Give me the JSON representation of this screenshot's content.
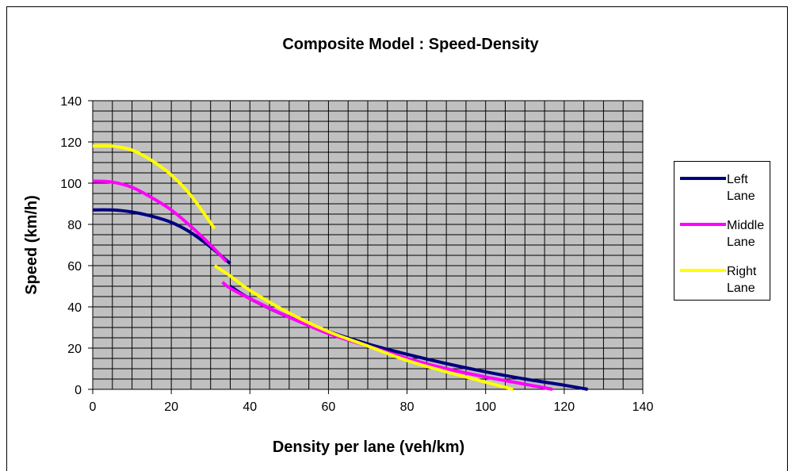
{
  "chart_data": {
    "type": "line",
    "title": "Composite Model : Speed-Density",
    "xlabel": "Density per lane (veh/km)",
    "ylabel": "Speed (km/h)",
    "xlim": [
      0,
      140
    ],
    "ylim": [
      0,
      140
    ],
    "x_ticks": [
      "0",
      "20",
      "40",
      "60",
      "80",
      "100",
      "120",
      "140"
    ],
    "y_ticks": [
      "0",
      "20",
      "40",
      "60",
      "80",
      "100",
      "120",
      "140"
    ],
    "x_minor_step": 5,
    "y_minor_step": 5,
    "grid": true,
    "plot_background": "#c0c0c0",
    "gridline_color": "#000000",
    "legend_position": "right",
    "series": [
      {
        "name": "Left Lane",
        "color": "#000080",
        "segments": [
          [
            [
              0,
              87
            ],
            [
              5,
              87
            ],
            [
              10,
              86
            ],
            [
              15,
              84
            ],
            [
              20,
              81
            ],
            [
              25,
              76
            ],
            [
              30,
              69
            ],
            [
              35,
              61
            ]
          ],
          [
            [
              35,
              50
            ],
            [
              40,
              44
            ],
            [
              50,
              35
            ],
            [
              60,
              28
            ],
            [
              70,
              22
            ],
            [
              80,
              17
            ],
            [
              90,
              12.5
            ],
            [
              100,
              8.5
            ],
            [
              110,
              5
            ],
            [
              120,
              2
            ],
            [
              126,
              0
            ]
          ]
        ]
      },
      {
        "name": "Middle Lane",
        "color": "#ff00ff",
        "segments": [
          [
            [
              0,
              101
            ],
            [
              5,
              100.5
            ],
            [
              10,
              98
            ],
            [
              15,
              93
            ],
            [
              20,
              87
            ],
            [
              25,
              79
            ],
            [
              30,
              70
            ],
            [
              34,
              62
            ]
          ],
          [
            [
              33,
              52
            ],
            [
              35,
              49
            ],
            [
              40,
              44
            ],
            [
              50,
              35
            ],
            [
              60,
              27
            ],
            [
              70,
              21
            ],
            [
              80,
              15
            ],
            [
              90,
              10
            ],
            [
              100,
              6
            ],
            [
              110,
              2.5
            ],
            [
              117,
              0
            ]
          ]
        ]
      },
      {
        "name": "Right Lane",
        "color": "#ffff00",
        "segments": [
          [
            [
              0,
              118
            ],
            [
              5,
              118
            ],
            [
              10,
              116
            ],
            [
              15,
              111
            ],
            [
              20,
              104
            ],
            [
              25,
              94
            ],
            [
              31,
              78
            ]
          ],
          [
            [
              31,
              60
            ],
            [
              35,
              55
            ],
            [
              40,
              48
            ],
            [
              50,
              37
            ],
            [
              60,
              28
            ],
            [
              70,
              21
            ],
            [
              80,
              14
            ],
            [
              90,
              8.5
            ],
            [
              100,
              3.5
            ],
            [
              107,
              0
            ]
          ]
        ]
      }
    ],
    "legend_lines": [
      [
        "Left",
        "Lane"
      ],
      [
        "Middle",
        "Lane"
      ],
      [
        "Right",
        "Lane"
      ]
    ]
  }
}
